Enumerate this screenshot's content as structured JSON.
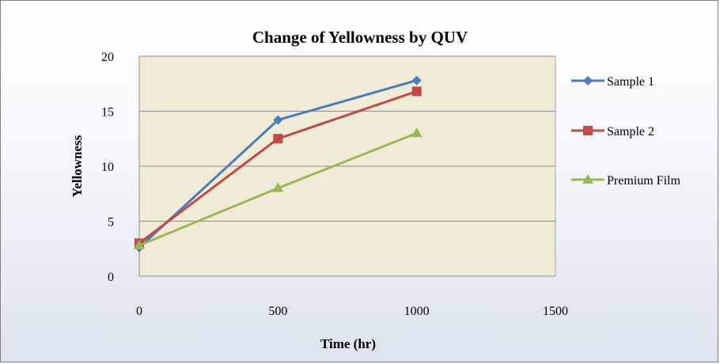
{
  "chart_data": {
    "type": "line",
    "title": "Change of Yellowness by QUV",
    "xlabel": "Time (hr)",
    "ylabel": "Yellowness",
    "xlim": [
      0,
      1500
    ],
    "ylim": [
      0,
      20
    ],
    "xticks": [
      0,
      500,
      1000,
      1500
    ],
    "yticks": [
      0,
      5,
      10,
      15,
      20
    ],
    "grid": "horizontal",
    "legend_position": "right",
    "plot_background": "#efebd7",
    "series": [
      {
        "name": "Sample 1",
        "color": "#4a7ebb",
        "marker": "diamond",
        "x": [
          0,
          500,
          1000
        ],
        "y": [
          2.6,
          14.2,
          17.8
        ]
      },
      {
        "name": "Sample 2",
        "color": "#be4b48",
        "marker": "square",
        "x": [
          0,
          500,
          1000
        ],
        "y": [
          3.0,
          12.5,
          16.8
        ]
      },
      {
        "name": "Premium Film",
        "color": "#98b954",
        "marker": "triangle",
        "x": [
          0,
          500,
          1000
        ],
        "y": [
          2.8,
          8.0,
          13.0
        ]
      }
    ]
  }
}
